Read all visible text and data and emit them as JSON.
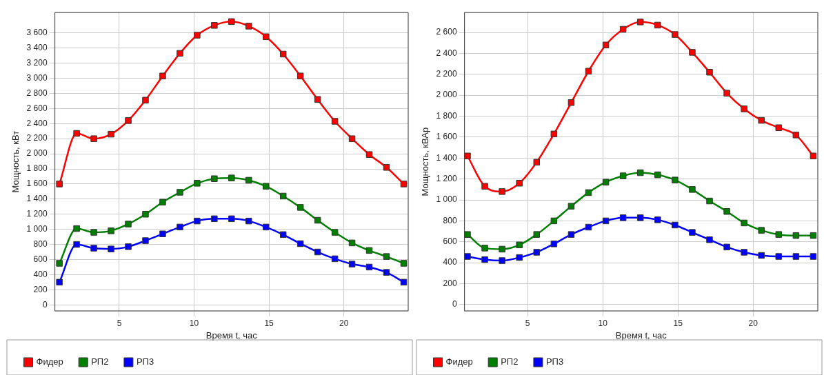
{
  "chart_data": [
    {
      "type": "line",
      "xlabel": "Время t, час",
      "ylabel": "Мощность, кВт",
      "x": [
        1,
        2.15,
        3.3,
        4.45,
        5.6,
        6.75,
        7.9,
        9.05,
        10.2,
        11.35,
        12.5,
        13.65,
        14.8,
        15.95,
        17.1,
        18.25,
        19.4,
        20.55,
        21.7,
        22.85,
        24
      ],
      "xlim": [
        0.7,
        24.3
      ],
      "xticks": [
        5,
        10,
        15,
        20
      ],
      "ylim": [
        -80,
        3870
      ],
      "yticks": [
        0,
        200,
        400,
        600,
        800,
        {
          "value": 1000,
          "label": "1 000"
        },
        {
          "value": 1200,
          "label": "1 200"
        },
        {
          "value": 1400,
          "label": "1 400"
        },
        {
          "value": 1600,
          "label": "1 600"
        },
        {
          "value": 1800,
          "label": "1 800"
        },
        {
          "value": 2000,
          "label": "2 000"
        },
        {
          "value": 2200,
          "label": "2 200"
        },
        {
          "value": 2400,
          "label": "2 400"
        },
        {
          "value": 2600,
          "label": "2 600"
        },
        {
          "value": 2800,
          "label": "2 800"
        },
        {
          "value": 3000,
          "label": "3 000"
        },
        {
          "value": 3200,
          "label": "3 200"
        },
        {
          "value": 3400,
          "label": "3 400"
        },
        {
          "value": 3600,
          "label": "3 600"
        }
      ],
      "grid": true,
      "legend": "bottom",
      "marker": "square",
      "line_style": "solid",
      "series": [
        {
          "name": "Фидер",
          "color": "#ff0000",
          "values": [
            1600,
            2270,
            2200,
            2260,
            2440,
            2710,
            3030,
            3330,
            3570,
            3700,
            3750,
            3690,
            3550,
            3320,
            3030,
            2720,
            2430,
            2200,
            1990,
            1820,
            1600
          ]
        },
        {
          "name": "РП2",
          "color": "#008000",
          "values": [
            550,
            1010,
            960,
            980,
            1070,
            1200,
            1360,
            1490,
            1610,
            1670,
            1680,
            1650,
            1570,
            1440,
            1290,
            1120,
            960,
            820,
            720,
            640,
            550
          ]
        },
        {
          "name": "РП3",
          "color": "#0000ff",
          "values": [
            300,
            800,
            750,
            740,
            770,
            850,
            940,
            1030,
            1110,
            1140,
            1140,
            1110,
            1030,
            930,
            810,
            700,
            610,
            540,
            500,
            430,
            300
          ]
        }
      ]
    },
    {
      "type": "line",
      "xlabel": "Время t, час",
      "ylabel": "Мощность, кВАр",
      "x": [
        1,
        2.15,
        3.3,
        4.45,
        5.6,
        6.75,
        7.9,
        9.05,
        10.2,
        11.35,
        12.5,
        13.65,
        14.8,
        15.95,
        17.1,
        18.25,
        19.4,
        20.55,
        21.7,
        22.85,
        24
      ],
      "xlim": [
        0.8,
        24.3
      ],
      "xticks": [
        5,
        10,
        15,
        20
      ],
      "ylim": [
        -60,
        2790
      ],
      "yticks": [
        0,
        200,
        400,
        600,
        800,
        {
          "value": 1000,
          "label": "1 000"
        },
        {
          "value": 1200,
          "label": "1 200"
        },
        {
          "value": 1400,
          "label": "1 400"
        },
        {
          "value": 1600,
          "label": "1 600"
        },
        {
          "value": 1800,
          "label": "1 800"
        },
        {
          "value": 2000,
          "label": "2 000"
        },
        {
          "value": 2200,
          "label": "2 200"
        },
        {
          "value": 2400,
          "label": "2 400"
        },
        {
          "value": 2600,
          "label": "2 600"
        }
      ],
      "grid": true,
      "legend": "bottom",
      "marker": "square",
      "line_style": "solid",
      "series": [
        {
          "name": "Фидер",
          "color": "#ff0000",
          "values": [
            1420,
            1130,
            1080,
            1160,
            1360,
            1630,
            1930,
            2230,
            2480,
            2630,
            2700,
            2670,
            2580,
            2410,
            2220,
            2020,
            1870,
            1760,
            1690,
            1620,
            1420
          ]
        },
        {
          "name": "РП2",
          "color": "#008000",
          "values": [
            670,
            540,
            530,
            570,
            670,
            800,
            940,
            1070,
            1170,
            1230,
            1260,
            1240,
            1190,
            1100,
            990,
            890,
            780,
            710,
            670,
            660,
            660
          ]
        },
        {
          "name": "РП3",
          "color": "#0000ff",
          "values": [
            460,
            430,
            420,
            450,
            500,
            580,
            670,
            740,
            800,
            830,
            830,
            810,
            760,
            690,
            620,
            550,
            500,
            470,
            460,
            460,
            460
          ]
        }
      ]
    }
  ]
}
